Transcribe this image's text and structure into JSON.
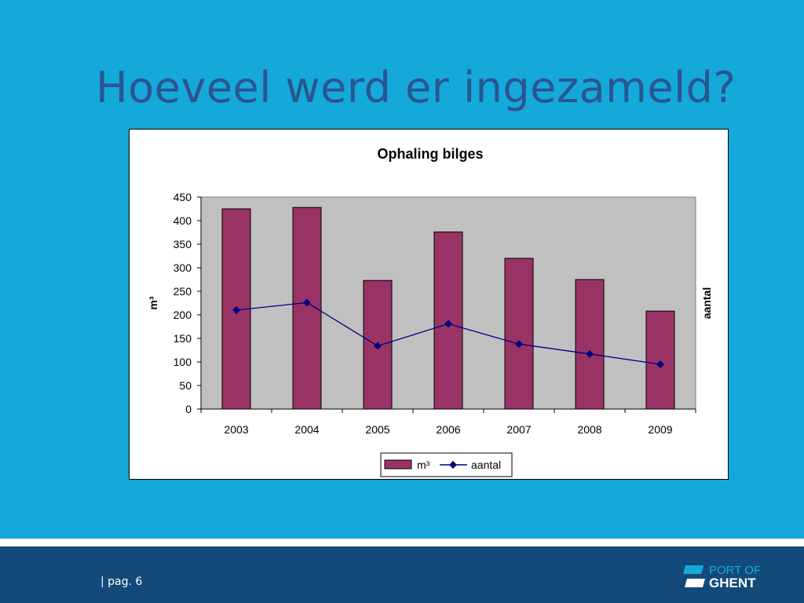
{
  "slide": {
    "title": "Hoeveel werd er ingezameld?"
  },
  "footer": {
    "page_label": "| pag. 6",
    "logo_text_top": "PORT OF",
    "logo_text_bottom": "GHENT"
  },
  "colors": {
    "background": "#14a9d9",
    "title": "#2b5590",
    "bar": "#993366",
    "line": "#000080",
    "plot_bg": "#c0c0c0",
    "footer": "#134a79"
  },
  "chart_data": {
    "type": "bar",
    "title": "Ophaling bilges",
    "categories": [
      "2003",
      "2004",
      "2005",
      "2006",
      "2007",
      "2008",
      "2009"
    ],
    "series": [
      {
        "name": "m³",
        "type": "bar",
        "values": [
          425,
          428,
          273,
          376,
          320,
          275,
          208
        ]
      },
      {
        "name": "aantal",
        "type": "line",
        "values": [
          210,
          226,
          134,
          181,
          138,
          117,
          95
        ]
      }
    ],
    "ylabel": "m³",
    "y2label": "aantal",
    "ylim": [
      0,
      450
    ],
    "yticks": [
      "0",
      "50",
      "100",
      "150",
      "200",
      "250",
      "300",
      "350",
      "400",
      "450"
    ],
    "grid": false,
    "legend": "bottom"
  }
}
